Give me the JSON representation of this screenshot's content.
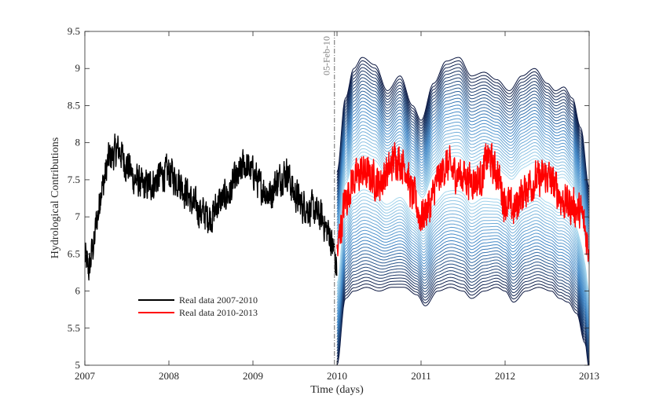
{
  "chart_data": {
    "type": "line",
    "title": "",
    "xlabel": "Time (days)",
    "ylabel": "Hydrological Contributions",
    "xlim": [
      2007,
      2013
    ],
    "ylim": [
      5,
      9.5
    ],
    "x_ticks": [
      2007,
      2008,
      2009,
      2010,
      2011,
      2012,
      2013
    ],
    "x_tick_labels": [
      "2007",
      "2008",
      "2009",
      "2010",
      "2011",
      "2012",
      "2013"
    ],
    "y_ticks": [
      5,
      5.5,
      6,
      6.5,
      7,
      7.5,
      8,
      8.5,
      9,
      9.5
    ],
    "y_tick_labels": [
      "5",
      "5.5",
      "6",
      "6.5",
      "7",
      "7.5",
      "8",
      "8.5",
      "9",
      "9.5"
    ],
    "grid": false,
    "legend_position": "lower-left",
    "annotation": {
      "text": "05-Feb-10",
      "x": 2010.1,
      "style": "dash-dot vertical line"
    },
    "series": [
      {
        "name": "Real data 2007-2010",
        "color": "#000000",
        "x_range": [
          2007,
          2010
        ],
        "anchors": [
          [
            2007.0,
            6.45
          ],
          [
            2007.05,
            6.3
          ],
          [
            2007.1,
            6.6
          ],
          [
            2007.15,
            7.0
          ],
          [
            2007.2,
            7.4
          ],
          [
            2007.3,
            7.8
          ],
          [
            2007.4,
            7.9
          ],
          [
            2007.5,
            7.7
          ],
          [
            2007.6,
            7.5
          ],
          [
            2007.7,
            7.4
          ],
          [
            2007.8,
            7.45
          ],
          [
            2007.9,
            7.55
          ],
          [
            2008.0,
            7.6
          ],
          [
            2008.1,
            7.5
          ],
          [
            2008.2,
            7.35
          ],
          [
            2008.3,
            7.15
          ],
          [
            2008.4,
            7.05
          ],
          [
            2008.5,
            7.0
          ],
          [
            2008.6,
            7.2
          ],
          [
            2008.7,
            7.3
          ],
          [
            2008.8,
            7.5
          ],
          [
            2008.9,
            7.7
          ],
          [
            2009.0,
            7.6
          ],
          [
            2009.1,
            7.4
          ],
          [
            2009.2,
            7.3
          ],
          [
            2009.3,
            7.5
          ],
          [
            2009.4,
            7.6
          ],
          [
            2009.5,
            7.3
          ],
          [
            2009.6,
            7.15
          ],
          [
            2009.7,
            7.1
          ],
          [
            2009.8,
            7.0
          ],
          [
            2009.9,
            6.8
          ],
          [
            2009.95,
            6.6
          ],
          [
            2010.0,
            6.3
          ]
        ],
        "noise": 0.18
      },
      {
        "name": "Real data 2010-2013",
        "color": "#ff0000",
        "x_range": [
          2010,
          2013
        ],
        "anchors": [
          [
            2010.0,
            6.5
          ],
          [
            2010.05,
            6.9
          ],
          [
            2010.1,
            7.25
          ],
          [
            2010.2,
            7.5
          ],
          [
            2010.3,
            7.6
          ],
          [
            2010.4,
            7.55
          ],
          [
            2010.5,
            7.45
          ],
          [
            2010.6,
            7.6
          ],
          [
            2010.7,
            7.8
          ],
          [
            2010.8,
            7.7
          ],
          [
            2010.9,
            7.3
          ],
          [
            2011.0,
            7.0
          ],
          [
            2011.1,
            7.15
          ],
          [
            2011.2,
            7.5
          ],
          [
            2011.3,
            7.7
          ],
          [
            2011.4,
            7.6
          ],
          [
            2011.5,
            7.55
          ],
          [
            2011.6,
            7.5
          ],
          [
            2011.7,
            7.5
          ],
          [
            2011.8,
            7.8
          ],
          [
            2011.9,
            7.6
          ],
          [
            2012.0,
            7.2
          ],
          [
            2012.1,
            7.1
          ],
          [
            2012.2,
            7.3
          ],
          [
            2012.3,
            7.45
          ],
          [
            2012.4,
            7.5
          ],
          [
            2012.5,
            7.55
          ],
          [
            2012.6,
            7.4
          ],
          [
            2012.7,
            7.2
          ],
          [
            2012.8,
            7.15
          ],
          [
            2012.9,
            7.05
          ],
          [
            2013.0,
            6.6
          ]
        ],
        "noise": 0.2
      }
    ],
    "forecast_band": {
      "x_range": [
        2010,
        2013
      ],
      "bands": 30,
      "colors": [
        "#0a1640",
        "#3f86c6",
        "#a8d8ee"
      ],
      "upper_envelope": [
        [
          2010.0,
          7.6
        ],
        [
          2010.1,
          8.6
        ],
        [
          2010.2,
          9.0
        ],
        [
          2010.3,
          9.15
        ],
        [
          2010.45,
          9.05
        ],
        [
          2010.6,
          8.7
        ],
        [
          2010.75,
          8.9
        ],
        [
          2010.9,
          8.5
        ],
        [
          2011.0,
          8.3
        ],
        [
          2011.15,
          8.8
        ],
        [
          2011.3,
          9.1
        ],
        [
          2011.45,
          9.15
        ],
        [
          2011.6,
          8.9
        ],
        [
          2011.75,
          8.95
        ],
        [
          2011.9,
          8.85
        ],
        [
          2012.05,
          8.7
        ],
        [
          2012.2,
          8.9
        ],
        [
          2012.35,
          9.0
        ],
        [
          2012.5,
          8.8
        ],
        [
          2012.6,
          8.7
        ],
        [
          2012.7,
          8.75
        ],
        [
          2012.8,
          8.6
        ],
        [
          2012.9,
          8.2
        ],
        [
          2013.0,
          7.4
        ]
      ],
      "lower_envelope": [
        [
          2010.0,
          5.0
        ],
        [
          2010.1,
          5.9
        ],
        [
          2010.2,
          6.0
        ],
        [
          2010.35,
          6.05
        ],
        [
          2010.5,
          6.0
        ],
        [
          2010.65,
          6.05
        ],
        [
          2010.8,
          6.05
        ],
        [
          2010.95,
          5.95
        ],
        [
          2011.05,
          5.8
        ],
        [
          2011.2,
          6.0
        ],
        [
          2011.35,
          6.05
        ],
        [
          2011.5,
          6.0
        ],
        [
          2011.6,
          5.9
        ],
        [
          2011.75,
          6.0
        ],
        [
          2011.9,
          6.05
        ],
        [
          2012.0,
          6.0
        ],
        [
          2012.1,
          5.85
        ],
        [
          2012.25,
          6.0
        ],
        [
          2012.4,
          6.05
        ],
        [
          2012.55,
          6.0
        ],
        [
          2012.65,
          5.9
        ],
        [
          2012.75,
          5.85
        ],
        [
          2012.85,
          5.7
        ],
        [
          2012.95,
          5.3
        ],
        [
          2013.0,
          4.95
        ]
      ]
    }
  }
}
